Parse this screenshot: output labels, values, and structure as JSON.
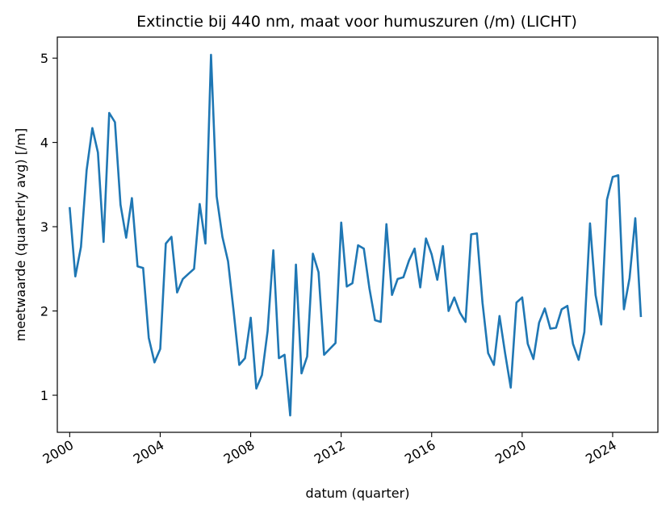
{
  "chart_data": {
    "type": "line",
    "title": "Extinctie bij 440 nm, maat voor humuszuren (/m) (LICHT)",
    "xlabel": "datum (quarter)",
    "ylabel": "meetwaarde (quarterly avg) [/m]",
    "xlim": [
      "1999-06-15",
      "2026-01-01"
    ],
    "ylim": [
      0.56,
      5.25
    ],
    "x_ticks": [
      "2000",
      "2004",
      "2008",
      "2012",
      "2016",
      "2020",
      "2024"
    ],
    "y_ticks": [
      "1",
      "2",
      "3",
      "4",
      "5"
    ],
    "grid": false,
    "legend": "none",
    "colors": {
      "line": "#1f77b4"
    },
    "series": [
      {
        "x": [
          "2000-01-01",
          "2000-04-01",
          "2000-07-01",
          "2000-10-01",
          "2001-01-01",
          "2001-04-01",
          "2001-07-01",
          "2001-10-01",
          "2002-01-01",
          "2002-04-01",
          "2002-07-01",
          "2002-10-01",
          "2003-01-01",
          "2003-04-01",
          "2003-07-01",
          "2003-10-01",
          "2004-01-01",
          "2004-04-01",
          "2004-07-01",
          "2004-10-01",
          "2005-01-01",
          "2005-04-01",
          "2005-07-01",
          "2005-10-01",
          "2006-01-01",
          "2006-04-01",
          "2006-07-01",
          "2006-10-01",
          "2007-01-01",
          "2007-04-01",
          "2007-07-01",
          "2007-10-01",
          "2008-01-01",
          "2008-04-01",
          "2008-07-01",
          "2008-10-01",
          "2009-01-01",
          "2009-04-01",
          "2009-07-01",
          "2009-10-01",
          "2010-01-01",
          "2010-04-01",
          "2010-07-01",
          "2010-10-01",
          "2011-01-01",
          "2011-04-01",
          "2011-07-01",
          "2011-10-01",
          "2012-01-01",
          "2012-04-01",
          "2012-07-01",
          "2012-10-01",
          "2013-01-01",
          "2013-04-01",
          "2013-07-01",
          "2013-10-01",
          "2014-01-01",
          "2014-04-01",
          "2014-07-01",
          "2014-10-01",
          "2015-01-01",
          "2015-04-01",
          "2015-07-01",
          "2015-10-01",
          "2016-01-01",
          "2016-04-01",
          "2016-07-01",
          "2016-10-01",
          "2017-01-01",
          "2017-04-01",
          "2017-07-01",
          "2017-10-01",
          "2018-01-01",
          "2018-04-01",
          "2018-07-01",
          "2018-10-01",
          "2019-01-01",
          "2019-04-01",
          "2019-07-01",
          "2019-10-01",
          "2020-01-01",
          "2020-04-01",
          "2020-07-01",
          "2020-10-01",
          "2021-01-01",
          "2021-04-01",
          "2021-07-01",
          "2021-10-01",
          "2022-01-01",
          "2022-04-01",
          "2022-07-01",
          "2022-10-01",
          "2023-01-01",
          "2023-04-01",
          "2023-07-01",
          "2023-10-01",
          "2024-01-01",
          "2024-04-01",
          "2024-07-01",
          "2024-10-01",
          "2025-01-01",
          "2025-04-01"
        ],
        "values": [
          3.22,
          2.41,
          2.76,
          3.67,
          4.17,
          3.88,
          2.82,
          4.35,
          4.24,
          3.26,
          2.87,
          3.34,
          2.53,
          2.51,
          1.68,
          1.39,
          1.55,
          2.8,
          2.88,
          2.22,
          2.38,
          2.44,
          2.5,
          3.27,
          2.8,
          5.04,
          3.36,
          2.88,
          2.59,
          2.0,
          1.36,
          1.44,
          1.92,
          1.08,
          1.24,
          1.76,
          2.72,
          1.44,
          1.48,
          0.76,
          2.55,
          1.26,
          1.46,
          2.68,
          2.46,
          1.48,
          1.55,
          1.62,
          3.05,
          2.29,
          2.33,
          2.78,
          2.74,
          2.27,
          1.89,
          1.87,
          3.03,
          2.19,
          2.38,
          2.4,
          2.6,
          2.74,
          2.28,
          2.86,
          2.67,
          2.37,
          2.77,
          2.0,
          2.16,
          1.98,
          1.87,
          2.91,
          2.92,
          2.1,
          1.5,
          1.36,
          1.94,
          1.5,
          1.09,
          2.1,
          2.16,
          1.61,
          1.43,
          1.86,
          2.03,
          1.79,
          1.8,
          2.02,
          2.06,
          1.61,
          1.42,
          1.75,
          3.04,
          2.19,
          1.84,
          3.32,
          3.59,
          3.61,
          2.02,
          2.39,
          3.1,
          1.94
        ]
      }
    ]
  }
}
